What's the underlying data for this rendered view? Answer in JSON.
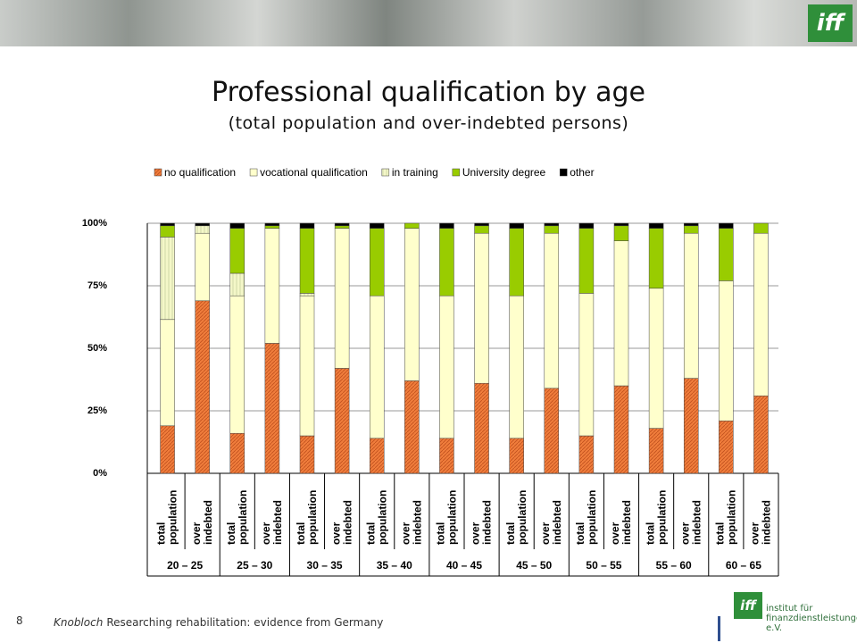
{
  "slide": {
    "logo": "iff",
    "number": "8",
    "author": "Knobloch",
    "footer": "Researching rehabilitation: evidence from Germany",
    "org_logo": "iff",
    "org_line1": "institut für",
    "org_line2": "finanzdienstleistungen e.V."
  },
  "chart_data": {
    "type": "stacked_bar",
    "title": "Professional qualification by age",
    "subtitle": "(total population and over-indebted persons)",
    "categories": [
      [
        "total",
        "population"
      ],
      [
        "over",
        "indebted"
      ],
      [
        "total",
        "population"
      ],
      [
        "over",
        "indebted"
      ],
      [
        "total",
        "population"
      ],
      [
        "over",
        "indebted"
      ],
      [
        "total",
        "population"
      ],
      [
        "over",
        "indebted"
      ],
      [
        "total",
        "population"
      ],
      [
        "over",
        "indebted"
      ],
      [
        "total",
        "population"
      ],
      [
        "over",
        "indebted"
      ],
      [
        "total",
        "population"
      ],
      [
        "over",
        "indebted"
      ],
      [
        "total",
        "population"
      ],
      [
        "over",
        "indebted"
      ],
      [
        "total",
        "population"
      ],
      [
        "over",
        "indebted"
      ]
    ],
    "groups": [
      "20 – 25",
      "25 – 30",
      "30 – 35",
      "35 – 40",
      "40 – 45",
      "45 – 50",
      "50 – 55",
      "55 – 60",
      "60 – 65"
    ],
    "series": [
      {
        "name": "no qualification",
        "color": "#f07d3c",
        "hatch": true,
        "values": [
          19,
          69,
          16,
          52,
          15,
          42,
          14,
          37,
          14,
          36,
          14,
          34,
          15,
          35,
          18,
          38,
          21,
          31
        ]
      },
      {
        "name": "vocational qualification",
        "color": "#ffffcc",
        "hatch": false,
        "values": [
          42.5,
          27,
          55,
          46,
          56,
          56,
          57,
          61,
          57,
          60,
          57,
          62,
          57,
          58,
          56,
          58,
          56,
          65
        ]
      },
      {
        "name": "in training",
        "color": "#f4f7c8",
        "hatch": true,
        "values": [
          33,
          3,
          9,
          0,
          1,
          0,
          0,
          0,
          0,
          0,
          0,
          0,
          0,
          0,
          0,
          0,
          0,
          0
        ]
      },
      {
        "name": "University degree",
        "color": "#99cc00",
        "hatch": false,
        "values": [
          4.5,
          0,
          18,
          1,
          26,
          1,
          27,
          2,
          27,
          3,
          27,
          3,
          26,
          6,
          24,
          3,
          21,
          4
        ]
      },
      {
        "name": "other",
        "color": "#000000",
        "hatch": false,
        "values": [
          1,
          1,
          2,
          1,
          2,
          1,
          2,
          0,
          2,
          1,
          2,
          1,
          2,
          1,
          2,
          1,
          2,
          0
        ]
      }
    ],
    "ylim": [
      0,
      100
    ],
    "yticks": [
      {
        "value": 0,
        "label": "0%"
      },
      {
        "value": 25,
        "label": "25%"
      },
      {
        "value": 50,
        "label": "50%"
      },
      {
        "value": 75,
        "label": "75%"
      },
      {
        "value": 100,
        "label": "100%"
      }
    ],
    "grid": true,
    "legend": "top"
  }
}
